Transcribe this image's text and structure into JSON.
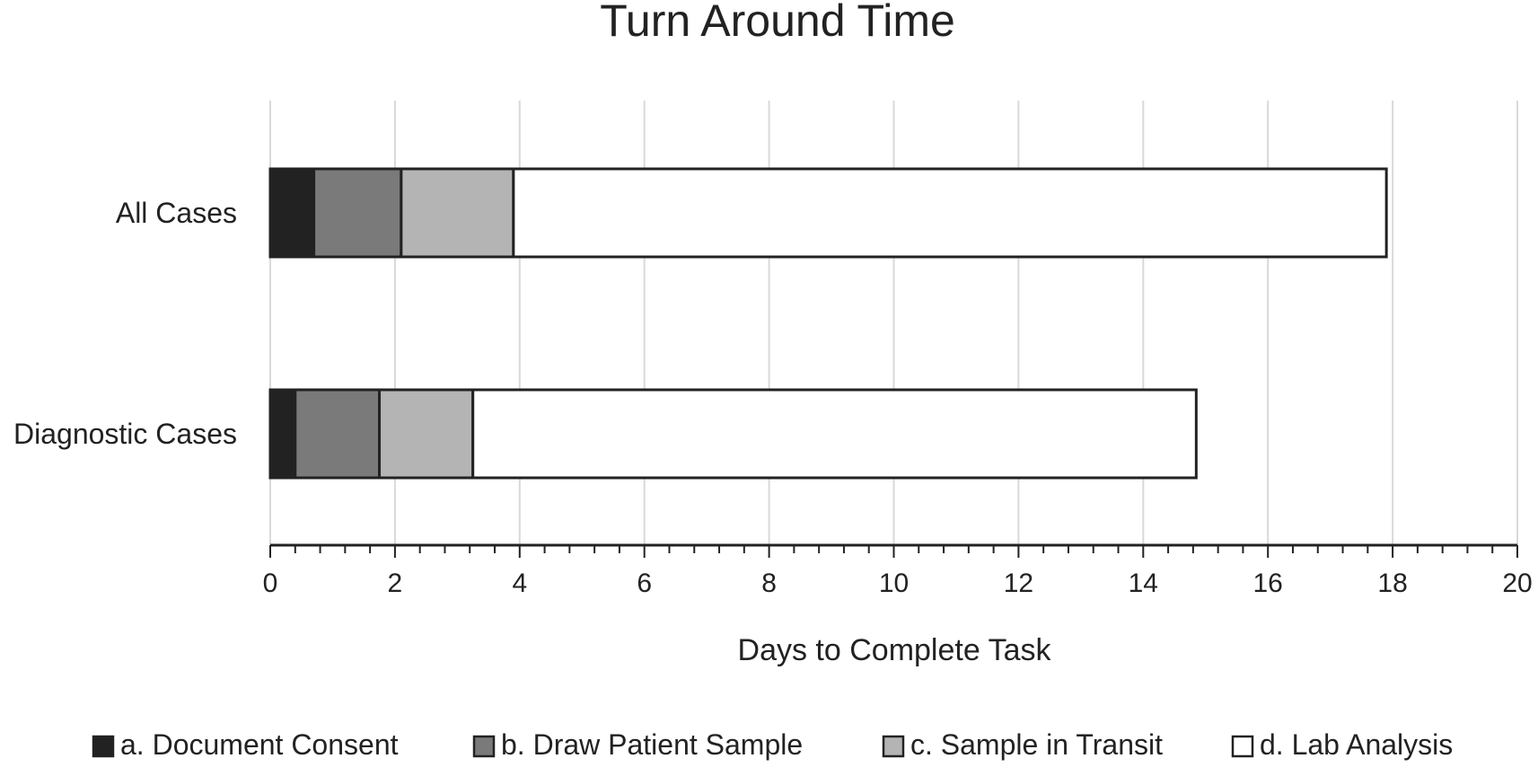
{
  "chart_data": {
    "type": "bar",
    "orientation": "horizontal",
    "stacked": true,
    "title": "Turn Around Time",
    "xlabel": "Days to Complete Task",
    "ylabel": "",
    "xlim": [
      0,
      20
    ],
    "xticks": [
      0,
      2,
      4,
      6,
      8,
      10,
      12,
      14,
      16,
      18,
      20
    ],
    "grid": true,
    "legend_position": "bottom",
    "categories": [
      "All Cases",
      "Diagnostic Cases"
    ],
    "series": [
      {
        "name": "a. Document Consent",
        "color": "#222222",
        "values": [
          0.7,
          0.4
        ]
      },
      {
        "name": "b. Draw Patient Sample",
        "color": "#7a7a7a",
        "values": [
          1.4,
          1.35
        ]
      },
      {
        "name": "c. Sample in Transit",
        "color": "#b4b4b4",
        "values": [
          1.8,
          1.5
        ]
      },
      {
        "name": "d. Lab Analysis",
        "color": "#ffffff",
        "values": [
          14.0,
          11.6
        ]
      }
    ]
  }
}
